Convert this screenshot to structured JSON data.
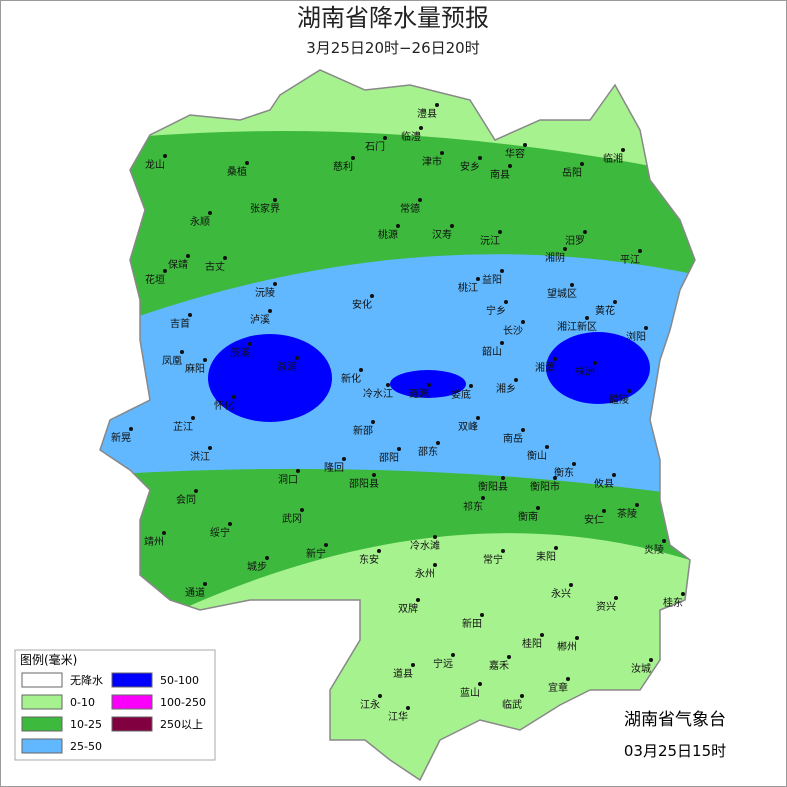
{
  "header": {
    "title": "湖南省降水量预报",
    "subtitle": "3月25日20时−26日20时"
  },
  "legend": {
    "title": "图例(毫米)",
    "items": [
      {
        "label": "无降水",
        "color": "#ffffff"
      },
      {
        "label": "0-10",
        "color": "#a6f28f"
      },
      {
        "label": "10-25",
        "color": "#3dba3d"
      },
      {
        "label": "25-50",
        "color": "#61b8ff"
      },
      {
        "label": "50-100",
        "color": "#0000fe"
      },
      {
        "label": "100-250",
        "color": "#fa00fa"
      },
      {
        "label": "250以上",
        "color": "#800040"
      }
    ]
  },
  "footer": {
    "issuer": "湖南省气象台",
    "time": "03月25日15时"
  },
  "cities": [
    "澧县",
    "临澧",
    "石门",
    "津市",
    "安乡",
    "华容",
    "临湘",
    "南县",
    "岳阳",
    "龙山",
    "桑植",
    "慈利",
    "永顺",
    "张家界",
    "常德",
    "汉寿",
    "桃源",
    "沅江",
    "汨罗",
    "平江",
    "保靖",
    "古丈",
    "花垣",
    "湘阴",
    "桃江",
    "益阳",
    "望城区",
    "沅陵",
    "安化",
    "宁乡",
    "吉首",
    "泸溪",
    "长沙",
    "湘江新区",
    "浏阳",
    "黄花",
    "凤凰",
    "辰溪",
    "麻阳",
    "溆浦",
    "韶山",
    "湘潭",
    "株洲",
    "新化",
    "冷水江",
    "涟源",
    "娄底",
    "湘乡",
    "醴陵",
    "怀化",
    "芷江",
    "新晃",
    "双峰",
    "南岳",
    "新邵",
    "衡山",
    "邵阳",
    "邵东",
    "洪江",
    "隆回",
    "衡东",
    "攸县",
    "洞口",
    "邵阳县",
    "衡阳县",
    "衡阳市",
    "会同",
    "祁东",
    "衡南",
    "安仁",
    "茶陵",
    "武冈",
    "靖州",
    "绥宁",
    "冷水滩",
    "炎陵",
    "新宁",
    "东安",
    "常宁",
    "耒阳",
    "城步",
    "永州",
    "通道",
    "永兴",
    "资兴",
    "桂东",
    "双牌",
    "新田",
    "桂阳",
    "郴州",
    "道县",
    "宁远",
    "嘉禾",
    "汝城",
    "宜章",
    "蓝山",
    "江永",
    "临武",
    "江华"
  ]
}
